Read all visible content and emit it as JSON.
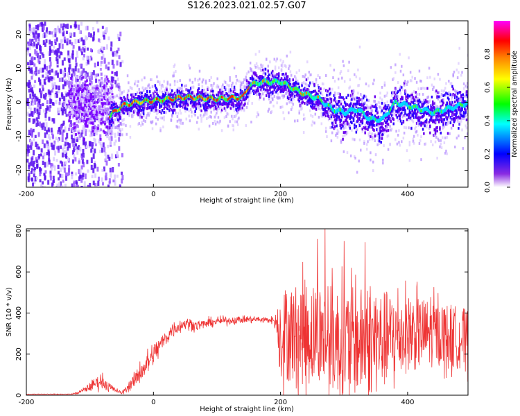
{
  "title": "S126.2023.021.02.57.G07",
  "chart_data": [
    {
      "type": "heatmap",
      "xlabel": "Height of straight line (km)",
      "ylabel": "Frequency (Hz)",
      "xlim": [
        -200,
        495
      ],
      "ylim": [
        -25,
        24
      ],
      "x_ticks": [
        "-200",
        "0",
        "200",
        "400"
      ],
      "y_ticks": [
        "20",
        "10",
        "0",
        "-10",
        "-20"
      ],
      "colorbar": {
        "label": "Normalized spectral amplitude",
        "range": [
          0,
          1
        ],
        "ticks": [
          "0.0",
          "0.2",
          "0.4",
          "0.6",
          "0.8"
        ],
        "colors": [
          "#ffffff",
          "#8a2be2",
          "#0000ff",
          "#00ffff",
          "#00ff00",
          "#ffff00",
          "#ff8000",
          "#ff0000",
          "#ff00ff"
        ]
      },
      "ridge_frequency": {
        "x": [
          -70,
          -50,
          -30,
          0,
          50,
          100,
          140,
          150,
          170,
          200,
          230,
          260,
          280,
          300,
          320,
          340,
          360,
          380,
          400,
          420,
          440,
          460,
          480,
          495
        ],
        "y": [
          -4,
          -1,
          0,
          0.5,
          1.5,
          1,
          1.5,
          5,
          6,
          6,
          3,
          1,
          -2,
          -3,
          -2,
          -5,
          -5,
          0,
          -1,
          -2,
          -3,
          -2,
          -1,
          0
        ]
      },
      "noise_region_x": [
        -200,
        -70
      ]
    },
    {
      "type": "line",
      "xlabel": "Height of straight line (km)",
      "ylabel": "SNR (10 * v/v)",
      "xlim": [
        -200,
        495
      ],
      "ylim": [
        0,
        810
      ],
      "x_ticks": [
        "-200",
        "0",
        "200",
        "400"
      ],
      "y_ticks": [
        "800",
        "600",
        "400",
        "200",
        "0"
      ],
      "color": "#ee3333",
      "envelope": {
        "x": [
          -200,
          -130,
          -120,
          -100,
          -90,
          -80,
          -70,
          -60,
          -50,
          -30,
          -20,
          -10,
          0,
          10,
          20,
          30,
          50,
          70,
          100,
          150,
          190,
          200,
          250,
          300,
          350,
          400,
          450,
          495
        ],
        "mean": [
          5,
          5,
          10,
          40,
          60,
          70,
          40,
          25,
          10,
          70,
          120,
          150,
          200,
          240,
          280,
          320,
          350,
          340,
          360,
          370,
          365,
          300,
          300,
          260,
          260,
          300,
          300,
          270
        ],
        "spread": [
          2,
          2,
          6,
          25,
          40,
          45,
          30,
          15,
          8,
          45,
          70,
          80,
          70,
          60,
          50,
          45,
          35,
          30,
          25,
          20,
          20,
          230,
          260,
          270,
          260,
          190,
          160,
          150
        ]
      },
      "peaks": [
        {
          "x": 270,
          "y": 810
        },
        {
          "x": 258,
          "y": 760
        },
        {
          "x": 300,
          "y": 750
        },
        {
          "x": 333,
          "y": 745
        }
      ]
    }
  ]
}
